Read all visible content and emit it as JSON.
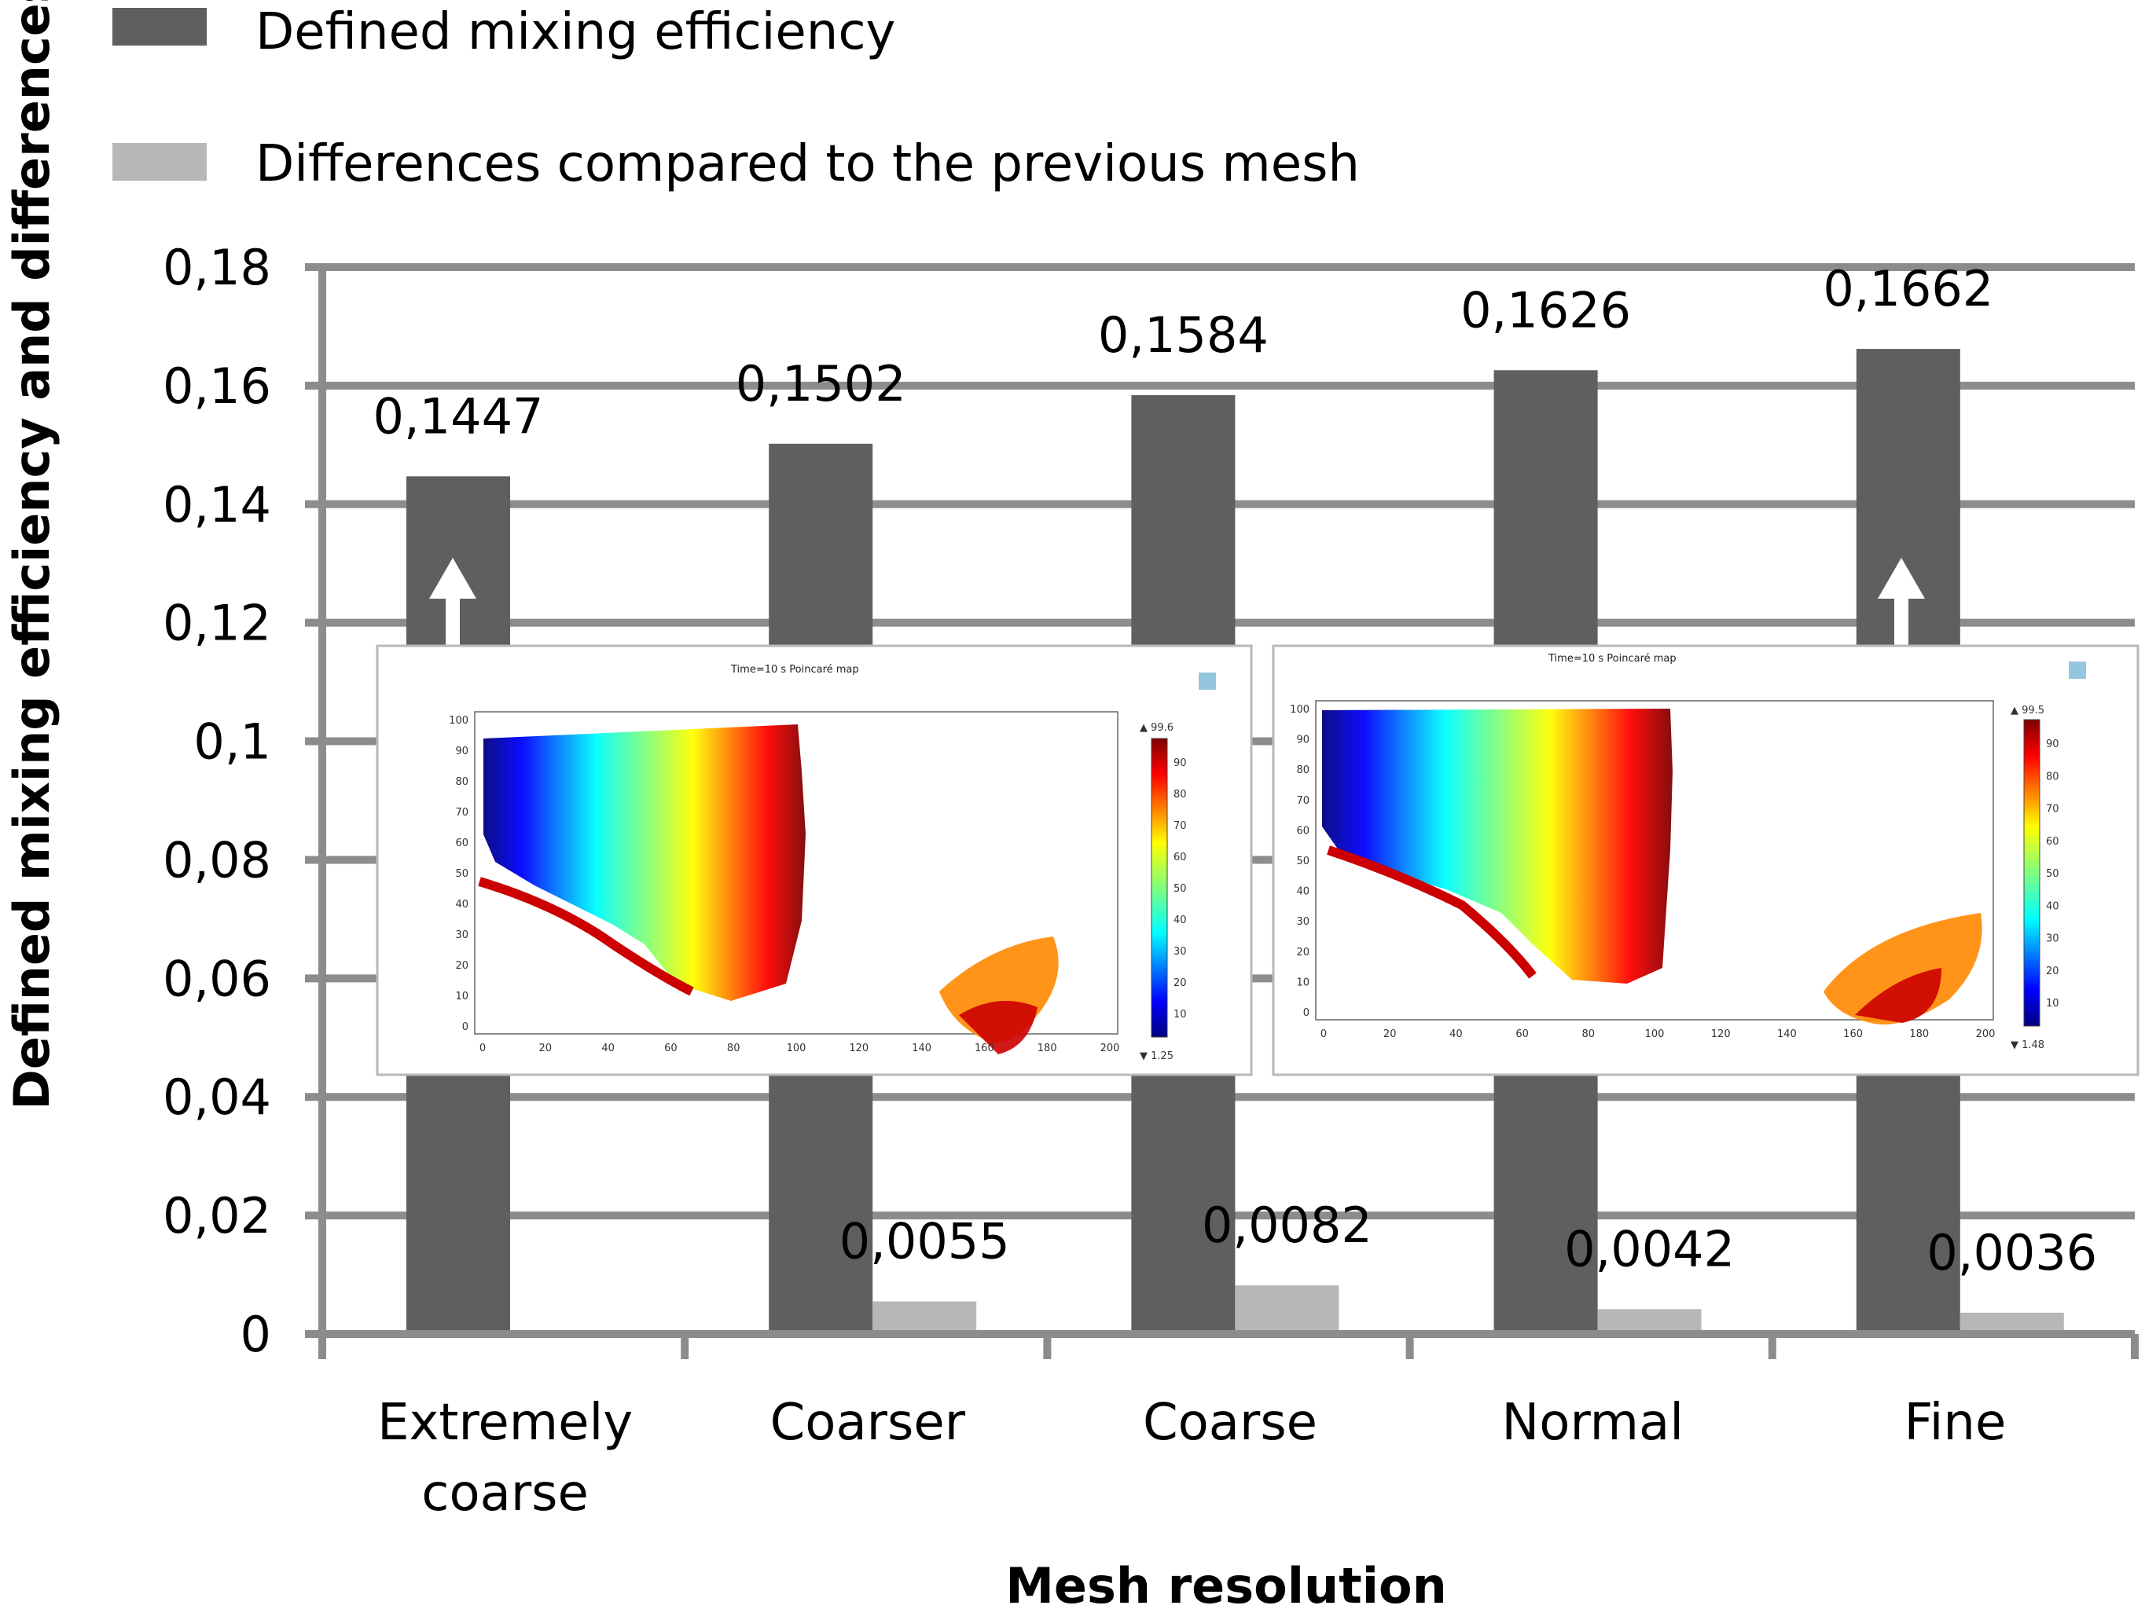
{
  "chart_data": {
    "type": "bar",
    "ylabel": "Defined mixing efficiency and differences",
    "xlabel": "Mesh resolution",
    "ylim": [
      0,
      0.18
    ],
    "yticks": [
      0,
      0.02,
      0.04,
      0.06,
      0.08,
      0.1,
      0.12,
      0.14,
      0.16,
      0.18
    ],
    "ytick_labels": [
      "0",
      "0,02",
      "0,04",
      "0,06",
      "0,08",
      "0,1",
      "0,12",
      "0,14",
      "0,16",
      "0,18"
    ],
    "categories": [
      {
        "line1": "Extremely",
        "line2": "coarse"
      },
      {
        "line1": "Coarser",
        "line2": ""
      },
      {
        "line1": "Coarse",
        "line2": ""
      },
      {
        "line1": "Normal",
        "line2": ""
      },
      {
        "line1": "Fine",
        "line2": ""
      }
    ],
    "series": [
      {
        "name": "Defined mixing efficiency",
        "color": "#5f5f5f",
        "values": [
          0.1447,
          0.1502,
          0.1584,
          0.1626,
          0.1662
        ],
        "labels": [
          "0,1447",
          "0,1502",
          "0,1584",
          "0,1626",
          "0,1662"
        ]
      },
      {
        "name": "Differences compared to the previous mesh",
        "color": "#b7b7b7",
        "values": [
          null,
          0.0055,
          0.0082,
          0.0042,
          0.0036
        ],
        "labels": [
          "",
          "0,0055",
          "0,0082",
          "0,0042",
          "0,0036"
        ]
      }
    ],
    "legend_position": "top-left",
    "grid": true
  },
  "insets": [
    {
      "title": "Time=10 s  Poincaré map",
      "colorbar_max": "▲ 99.6",
      "colorbar_min": "▼ 1.25",
      "x_ticks": [
        "0",
        "20",
        "40",
        "60",
        "80",
        "100",
        "120",
        "140",
        "160",
        "180",
        "200"
      ],
      "y_ticks": [
        "0",
        "10",
        "20",
        "30",
        "40",
        "50",
        "60",
        "70",
        "80",
        "90",
        "100"
      ],
      "cb_ticks": [
        "10",
        "20",
        "30",
        "40",
        "50",
        "60",
        "70",
        "80",
        "90"
      ]
    },
    {
      "title": "Time=10 s  Poincaré map",
      "colorbar_max": "▲ 99.5",
      "colorbar_min": "▼ 1.48",
      "x_ticks": [
        "0",
        "20",
        "40",
        "60",
        "80",
        "100",
        "120",
        "140",
        "160",
        "180",
        "200"
      ],
      "y_ticks": [
        "0",
        "10",
        "20",
        "30",
        "40",
        "50",
        "60",
        "70",
        "80",
        "90",
        "100"
      ],
      "cb_ticks": [
        "10",
        "20",
        "30",
        "40",
        "50",
        "60",
        "70",
        "80",
        "90"
      ]
    }
  ]
}
